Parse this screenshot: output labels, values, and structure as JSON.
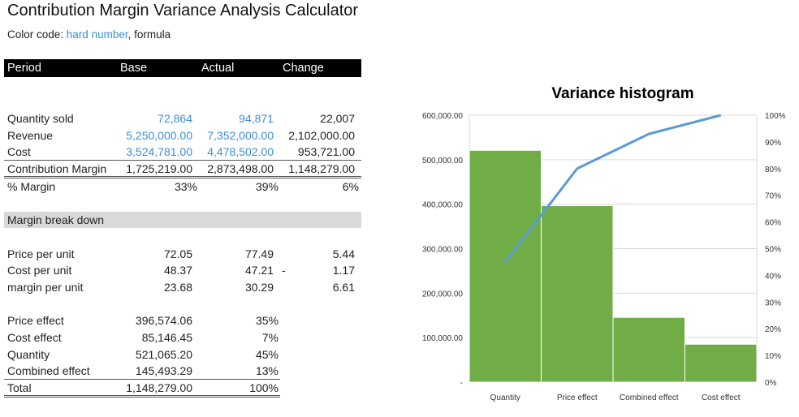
{
  "title": "Contribution Margin Variance Analysis Calculator",
  "color_code": {
    "label": "Color code: ",
    "hard": "hard number",
    "sep": ", ",
    "formula": "formula",
    "hard_color": "#3a8fd9"
  },
  "header": [
    "Period",
    "Base",
    "Actual",
    "Change"
  ],
  "summary": [
    {
      "label": "Quantity sold",
      "base": "72,864",
      "actual": "94,871",
      "change": "22,007",
      "input": true
    },
    {
      "label": "Revenue",
      "base": "5,250,000.00",
      "actual": "7,352,000.00",
      "change": "2,102,000.00",
      "input": true
    },
    {
      "label": "Cost",
      "base": "3,524,781.00",
      "actual": "4,478,502.00",
      "change": "953,721.00",
      "input": true
    },
    {
      "label": "Contribution Margin",
      "base": "1,725,219.00",
      "actual": "2,873,498.00",
      "change": "1,148,279.00",
      "input": false
    },
    {
      "label": "% Margin",
      "base": "33%",
      "actual": "39%",
      "change": "6%",
      "input": false
    }
  ],
  "breakdown_title": "Margin break down",
  "per_unit": [
    {
      "label": "Price per unit",
      "base": "72.05",
      "actual": "77.49",
      "change": "5.44",
      "neg": false
    },
    {
      "label": "Cost per unit",
      "base": "48.37",
      "actual": "47.21",
      "change": "1.17",
      "neg": true
    },
    {
      "label": "margin per unit",
      "base": "23.68",
      "actual": "30.29",
      "change": "6.61",
      "neg": false
    }
  ],
  "effects": [
    {
      "label": "Price effect",
      "value": "396,574.06",
      "pct": "35%"
    },
    {
      "label": "Cost effect",
      "value": "85,146.45",
      "pct": "7%"
    },
    {
      "label": "Quantity",
      "value": "521,065.20",
      "pct": "45%"
    },
    {
      "label": "Combined effect",
      "value": "145,493.29",
      "pct": "13%"
    },
    {
      "label": "Total",
      "value": "1,148,279.00",
      "pct": "100%"
    }
  ],
  "chart_data": {
    "type": "bar",
    "title": "Variance histogram",
    "categories": [
      "Quantity",
      "Price effect",
      "Combined effect",
      "Cost effect"
    ],
    "values": [
      521065.2,
      396574.06,
      145493.29,
      85146.45
    ],
    "cumulative_pct": [
      45,
      80,
      93,
      100
    ],
    "ylim": [
      0,
      600000
    ],
    "y_ticks": [
      "-",
      "100,000.00",
      "200,000.00",
      "300,000.00",
      "400,000.00",
      "500,000.00",
      "600,000.00"
    ],
    "y2lim": [
      0,
      100
    ],
    "y2_ticks": [
      "0%",
      "10%",
      "20%",
      "30%",
      "40%",
      "50%",
      "60%",
      "70%",
      "80%",
      "90%",
      "100%"
    ],
    "grid": true,
    "bar_color": "#70ad47",
    "line_color": "#5b9bd5"
  }
}
